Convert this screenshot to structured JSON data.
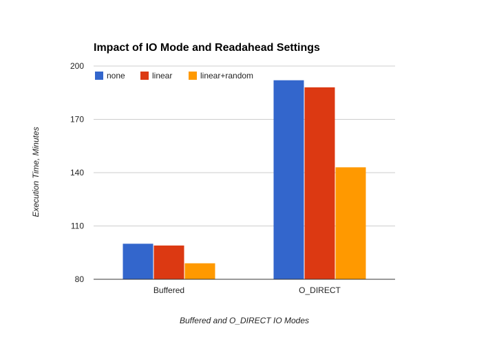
{
  "chart_data": {
    "type": "bar",
    "title": "Impact of IO Mode and Readahead Settings",
    "xlabel": "Buffered and O_DIRECT IO Modes",
    "ylabel": "Execution Time, Minutes",
    "categories": [
      "Buffered",
      "O_DIRECT"
    ],
    "ylim": [
      80,
      200
    ],
    "yticks": [
      80,
      110,
      140,
      170,
      200
    ],
    "grid": true,
    "legend_position": "top-left",
    "series": [
      {
        "name": "none",
        "color": "#3366cc",
        "values": [
          100,
          192
        ]
      },
      {
        "name": "linear",
        "color": "#dc3912",
        "values": [
          99,
          188
        ]
      },
      {
        "name": "linear+random",
        "color": "#ff9900",
        "values": [
          89,
          143
        ]
      }
    ]
  }
}
